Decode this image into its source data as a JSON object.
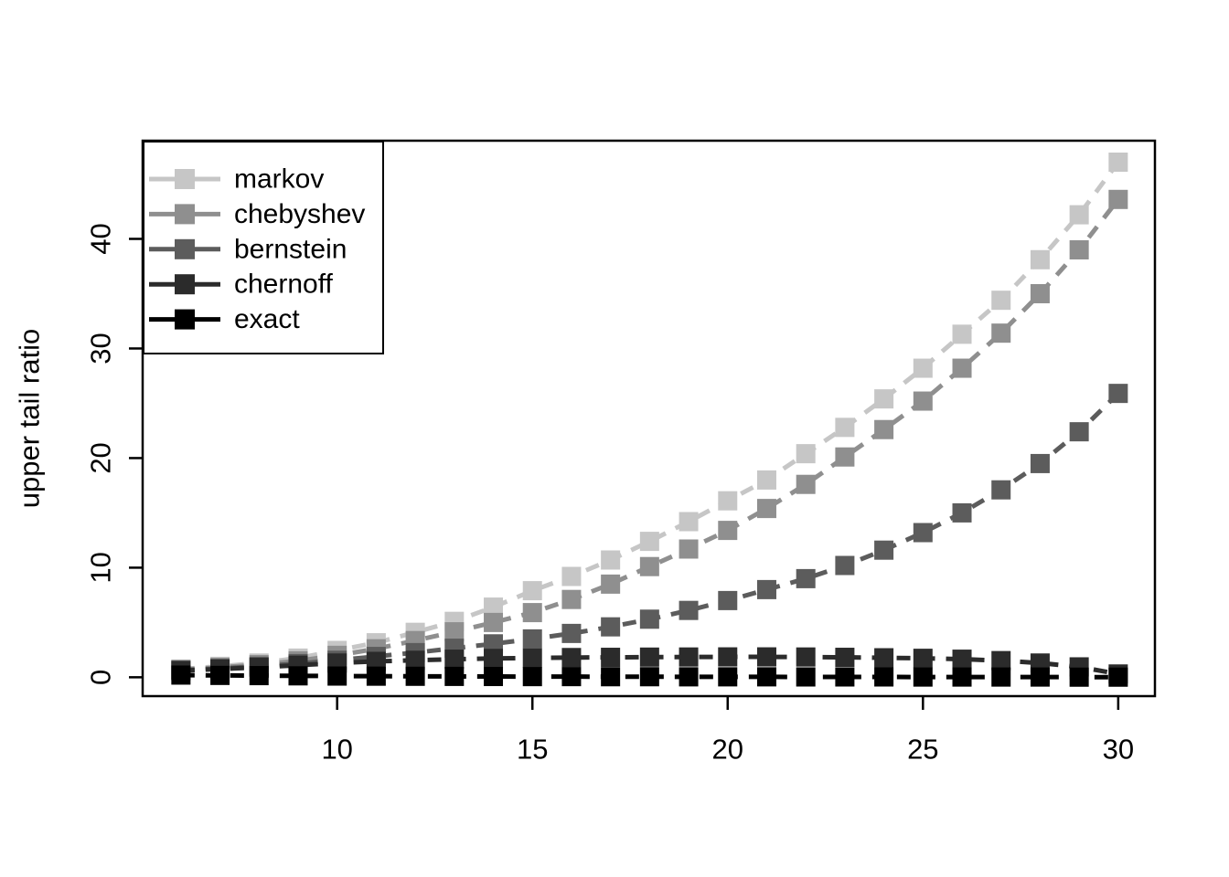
{
  "figure": {
    "kind": "r-base-graphics-plot",
    "background": "#FFFFFF",
    "frame_color": "#000000",
    "text_color": "#000000"
  },
  "chart_data": {
    "type": "line",
    "title": "",
    "xlabel": "",
    "ylabel": "upper tail ratio",
    "grid": false,
    "marker": "filled-square",
    "line_style": "dashed",
    "legend_position": "top-left",
    "xlim": [
      6,
      30
    ],
    "ylim": [
      0,
      47
    ],
    "xticks": [
      10,
      15,
      20,
      25,
      30
    ],
    "yticks": [
      0,
      10,
      20,
      30,
      40
    ],
    "x": [
      6,
      7,
      8,
      9,
      10,
      11,
      12,
      13,
      14,
      15,
      16,
      17,
      18,
      19,
      20,
      21,
      22,
      23,
      24,
      25,
      26,
      27,
      28,
      29,
      30
    ],
    "series": [
      {
        "name": "markov",
        "color": "#C6C6C6",
        "values": [
          0.75,
          1.0,
          1.3,
          1.75,
          2.45,
          3.15,
          4.1,
          5.1,
          6.4,
          7.9,
          9.2,
          10.7,
          12.4,
          14.2,
          16.1,
          18.0,
          20.4,
          22.8,
          25.4,
          28.2,
          31.3,
          34.4,
          38.1,
          42.2,
          47.0
        ]
      },
      {
        "name": "chebyshev",
        "color": "#8F8F8F",
        "values": [
          0.7,
          0.9,
          1.15,
          1.5,
          2.0,
          2.6,
          3.35,
          4.15,
          5.0,
          5.9,
          7.1,
          8.5,
          10.1,
          11.7,
          13.4,
          15.4,
          17.6,
          20.1,
          22.6,
          25.2,
          28.2,
          31.4,
          35.0,
          39.0,
          43.6
        ]
      },
      {
        "name": "bernstein",
        "color": "#5C5C5C",
        "values": [
          0.65,
          0.8,
          1.0,
          1.25,
          1.55,
          1.9,
          2.25,
          2.65,
          3.05,
          3.5,
          4.0,
          4.6,
          5.3,
          6.1,
          7.0,
          8.0,
          9.0,
          10.2,
          11.6,
          13.2,
          15.0,
          17.1,
          19.5,
          22.4,
          25.9
        ]
      },
      {
        "name": "chernoff",
        "color": "#2B2B2B",
        "values": [
          0.6,
          0.75,
          0.9,
          1.1,
          1.3,
          1.45,
          1.55,
          1.65,
          1.72,
          1.76,
          1.8,
          1.82,
          1.84,
          1.85,
          1.86,
          1.86,
          1.85,
          1.82,
          1.78,
          1.73,
          1.65,
          1.52,
          1.3,
          0.95,
          0.3
        ]
      },
      {
        "name": "exact",
        "color": "#000000",
        "values": [
          0.2,
          0.17,
          0.15,
          0.13,
          0.11,
          0.1,
          0.09,
          0.08,
          0.07,
          0.06,
          0.06,
          0.05,
          0.05,
          0.04,
          0.04,
          0.04,
          0.03,
          0.03,
          0.03,
          0.02,
          0.02,
          0.02,
          0.02,
          0.01,
          0.01
        ]
      }
    ]
  }
}
